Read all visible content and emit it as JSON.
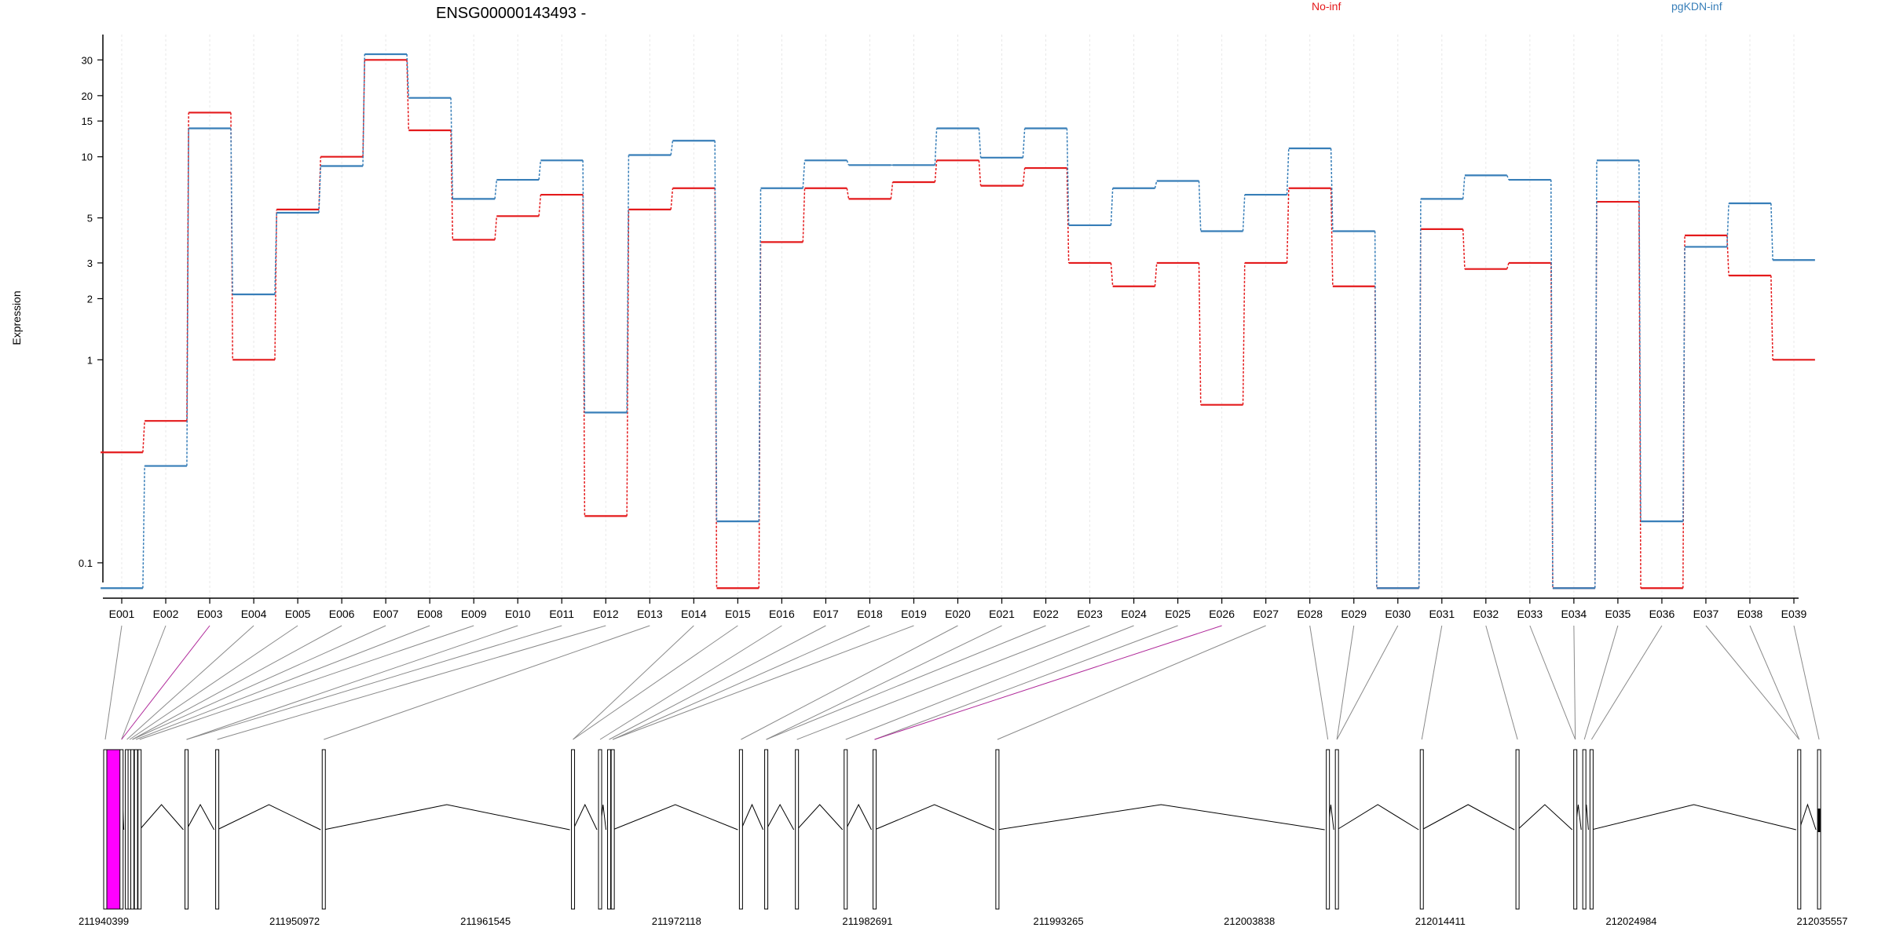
{
  "chart_data": {
    "type": "line",
    "title": "ENSG00000143493 -",
    "ylabel": "Expression",
    "xlabel": "",
    "yscale": "log",
    "ylim": [
      0.08,
      40
    ],
    "yticks": [
      0.1,
      1,
      2,
      3,
      5,
      10,
      15,
      20,
      30
    ],
    "ytick_labels": [
      "0.1",
      "1",
      "2",
      "3",
      "5",
      "10",
      "15",
      "20",
      "30"
    ],
    "legend_position": "top",
    "grid": "vertical, light, dotted",
    "categories": [
      "E001",
      "E002",
      "E003",
      "E004",
      "E005",
      "E006",
      "E007",
      "E008",
      "E009",
      "E010",
      "E011",
      "E012",
      "E013",
      "E014",
      "E015",
      "E016",
      "E017",
      "E018",
      "E019",
      "E020",
      "E021",
      "E022",
      "E023",
      "E024",
      "E025",
      "E026",
      "E027",
      "E028",
      "E029",
      "E030",
      "E031",
      "E032",
      "E033",
      "E034",
      "E035",
      "E036",
      "E037",
      "E038",
      "E039"
    ],
    "series": [
      {
        "name": "No-inf",
        "color": "#e41a1c",
        "values": [
          0.35,
          0.5,
          16.5,
          1.0,
          5.5,
          10.0,
          30.0,
          13.5,
          3.9,
          5.1,
          6.5,
          0.17,
          5.5,
          7.0,
          0.075,
          3.8,
          7.0,
          6.2,
          7.5,
          9.6,
          7.2,
          8.8,
          3.0,
          2.3,
          3.0,
          0.6,
          3.0,
          7.0,
          2.3,
          0.075,
          4.4,
          2.8,
          3.0,
          0.075,
          6.0,
          0.075,
          4.1,
          2.6,
          1.0
        ]
      },
      {
        "name": "pgKDN-inf",
        "color": "#377eb8",
        "values": [
          0.075,
          0.3,
          13.8,
          2.1,
          5.3,
          9.0,
          32.0,
          19.5,
          6.2,
          7.7,
          9.6,
          0.55,
          10.2,
          12.0,
          0.16,
          7.0,
          9.6,
          9.1,
          9.1,
          13.8,
          9.9,
          13.8,
          4.6,
          7.0,
          7.6,
          4.3,
          6.5,
          11.0,
          4.3,
          0.075,
          6.2,
          8.1,
          7.7,
          0.075,
          9.6,
          0.16,
          3.6,
          5.9,
          3.1
        ]
      }
    ],
    "gene_model": {
      "coordinate_labels": [
        "211940399",
        "211950972",
        "211961545",
        "211972118",
        "211982691",
        "211993265",
        "212003838",
        "212014411",
        "212024984",
        "212035557"
      ],
      "exon_positions": [
        211940399,
        211941300,
        211941600,
        211941750,
        211941900,
        211942100,
        211942300,
        211944900,
        211946600,
        211952500,
        211966300,
        211967800,
        211968300,
        211968500,
        211975600,
        211977000,
        211978700,
        211981400,
        211983000,
        211989800,
        212008100,
        212008600,
        212013300,
        212018600,
        212021800,
        212022300,
        212022700,
        212034200,
        212035300
      ],
      "highlighted_exons": [
        "E003",
        "E026"
      ],
      "highlight_color": "#ff00ff"
    }
  }
}
